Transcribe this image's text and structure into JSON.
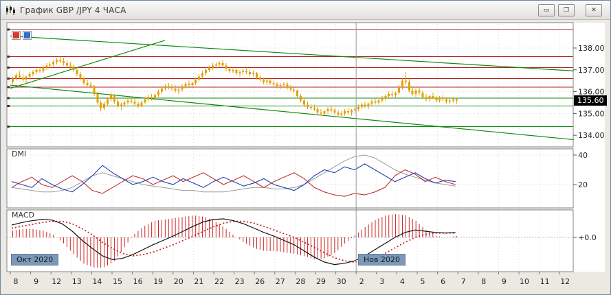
{
  "window": {
    "title": "График GBP /JPY  4 ЧАСА",
    "buttons": {
      "minimize": "▭",
      "restore": "❐",
      "close": "✕"
    }
  },
  "colors": {
    "candle": "#e5a000",
    "red_line": "#b22222",
    "green_line": "#128a12",
    "dmi_plus": "#1f3fae",
    "dmi_minus": "#c43030",
    "dmi_adx": "#999999",
    "macd_line": "#111111",
    "macd_signal": "#cc2222",
    "grid": "#dedede",
    "panel_border": "#848484",
    "month_line": "#9a9a9a",
    "badge_bg": "#000000",
    "badge_text": "#ffffff"
  },
  "chart_data": {
    "type": "candlestick",
    "title": "График GBP /JPY  4 ЧАСА",
    "symbol": "GBP/JPY",
    "timeframe": "4 часа",
    "current_price": "135.60",
    "price_axis": {
      "min": 133.5,
      "max": 139.1,
      "ticks": [
        {
          "label": "138.00",
          "value": 138.0
        },
        {
          "label": "137.00",
          "value": 137.0
        },
        {
          "label": "136.00",
          "value": 136.0
        },
        {
          "label": "135.00",
          "value": 135.0
        },
        {
          "label": "134.00",
          "value": 134.0
        }
      ]
    },
    "x_labels": [
      "8",
      "9",
      "12",
      "13",
      "14",
      "15",
      "16",
      "19",
      "20",
      "21",
      "22",
      "23",
      "26",
      "27",
      "28",
      "29",
      "30",
      "2",
      "3",
      "4",
      "5",
      "6",
      "7",
      "8",
      "9",
      "10",
      "11",
      "12"
    ],
    "month_labels": [
      {
        "text": "Окт 2020",
        "day_index": 0
      },
      {
        "text": "Нов 2020",
        "day_index": 17
      }
    ],
    "levels": {
      "red": [
        138.85,
        137.6,
        137.1,
        136.6,
        136.2
      ],
      "green": [
        135.7,
        135.35,
        134.4
      ]
    },
    "trendlines": [
      {
        "d1": 0,
        "p1": 136.15,
        "d2": 7.6,
        "p2": 138.35
      },
      {
        "d1": 0,
        "p1": 138.55,
        "d2": 27.7,
        "p2": 136.95
      },
      {
        "d1": 0,
        "p1": 136.3,
        "d2": 27.7,
        "p2": 133.8
      }
    ],
    "candles": [
      [
        136.45,
        136.7,
        136.35,
        136.6
      ],
      [
        136.6,
        136.85,
        136.5,
        136.75
      ],
      [
        136.75,
        136.95,
        136.6,
        136.65
      ],
      [
        136.65,
        136.8,
        136.45,
        136.55
      ],
      [
        136.55,
        136.75,
        136.4,
        136.7
      ],
      [
        136.7,
        136.9,
        136.55,
        136.8
      ],
      [
        136.8,
        137.0,
        136.7,
        136.9
      ],
      [
        136.9,
        137.1,
        136.8,
        137.0
      ],
      [
        137.0,
        137.15,
        136.85,
        136.95
      ],
      [
        136.95,
        137.2,
        136.85,
        137.1
      ],
      [
        137.1,
        137.3,
        137.0,
        137.2
      ],
      [
        137.2,
        137.35,
        137.05,
        137.25
      ],
      [
        137.25,
        137.45,
        137.15,
        137.35
      ],
      [
        137.35,
        137.55,
        137.25,
        137.45
      ],
      [
        137.45,
        137.6,
        137.3,
        137.4
      ],
      [
        137.4,
        137.55,
        137.2,
        137.3
      ],
      [
        137.3,
        137.45,
        137.1,
        137.2
      ],
      [
        137.2,
        137.35,
        137.05,
        137.15
      ],
      [
        137.15,
        137.25,
        136.9,
        137.0
      ],
      [
        137.0,
        137.1,
        136.7,
        136.8
      ],
      [
        136.8,
        136.9,
        136.5,
        136.6
      ],
      [
        136.6,
        136.7,
        136.3,
        136.4
      ],
      [
        136.4,
        136.55,
        136.2,
        136.3
      ],
      [
        136.3,
        136.45,
        136.15,
        136.25
      ],
      [
        136.25,
        136.3,
        135.8,
        135.9
      ],
      [
        135.9,
        136.0,
        135.4,
        135.5
      ],
      [
        135.5,
        135.6,
        135.1,
        135.25
      ],
      [
        135.25,
        135.55,
        135.15,
        135.45
      ],
      [
        135.45,
        135.75,
        135.35,
        135.65
      ],
      [
        135.65,
        135.95,
        135.55,
        135.85
      ],
      [
        135.85,
        135.9,
        135.45,
        135.55
      ],
      [
        135.55,
        135.65,
        135.25,
        135.35
      ],
      [
        135.35,
        135.5,
        135.15,
        135.4
      ],
      [
        135.4,
        135.6,
        135.3,
        135.5
      ],
      [
        135.5,
        135.7,
        135.4,
        135.6
      ],
      [
        135.6,
        135.75,
        135.45,
        135.55
      ],
      [
        135.55,
        135.7,
        135.35,
        135.45
      ],
      [
        135.45,
        135.55,
        135.25,
        135.35
      ],
      [
        135.35,
        135.6,
        135.3,
        135.5
      ],
      [
        135.5,
        135.75,
        135.45,
        135.65
      ],
      [
        135.65,
        135.85,
        135.55,
        135.75
      ],
      [
        135.75,
        135.9,
        135.6,
        135.7
      ],
      [
        135.7,
        135.95,
        135.6,
        135.85
      ],
      [
        135.85,
        136.1,
        135.75,
        136.0
      ],
      [
        136.0,
        136.25,
        135.9,
        136.15
      ],
      [
        136.15,
        136.35,
        136.05,
        136.25
      ],
      [
        136.25,
        136.4,
        136.1,
        136.2
      ],
      [
        136.2,
        136.35,
        136.05,
        136.15
      ],
      [
        136.15,
        136.3,
        135.95,
        136.05
      ],
      [
        136.05,
        136.2,
        135.9,
        136.1
      ],
      [
        136.1,
        136.35,
        136.0,
        136.25
      ],
      [
        136.25,
        136.45,
        136.15,
        136.35
      ],
      [
        136.35,
        136.5,
        136.2,
        136.3
      ],
      [
        136.3,
        136.45,
        136.15,
        136.4
      ],
      [
        136.4,
        136.65,
        136.3,
        136.55
      ],
      [
        136.55,
        136.8,
        136.45,
        136.7
      ],
      [
        136.7,
        136.95,
        136.6,
        136.85
      ],
      [
        136.85,
        137.1,
        136.75,
        137.0
      ],
      [
        137.0,
        137.2,
        136.9,
        137.1
      ],
      [
        137.1,
        137.3,
        137.0,
        137.2
      ],
      [
        137.2,
        137.35,
        137.05,
        137.25
      ],
      [
        137.25,
        137.4,
        137.1,
        137.3
      ],
      [
        137.3,
        137.45,
        137.15,
        137.2
      ],
      [
        137.2,
        137.3,
        136.95,
        137.05
      ],
      [
        137.05,
        137.15,
        136.85,
        136.95
      ],
      [
        136.95,
        137.1,
        136.85,
        137.0
      ],
      [
        137.0,
        137.1,
        136.75,
        136.85
      ],
      [
        136.85,
        137.0,
        136.7,
        136.9
      ],
      [
        136.9,
        137.05,
        136.75,
        136.95
      ],
      [
        136.95,
        137.1,
        136.8,
        136.9
      ],
      [
        136.9,
        137.0,
        136.7,
        136.8
      ],
      [
        136.8,
        136.95,
        136.7,
        136.85
      ],
      [
        136.85,
        136.9,
        136.55,
        136.65
      ],
      [
        136.65,
        136.75,
        136.45,
        136.55
      ],
      [
        136.55,
        136.65,
        136.35,
        136.45
      ],
      [
        136.45,
        136.6,
        136.3,
        136.5
      ],
      [
        136.5,
        136.6,
        136.3,
        136.4
      ],
      [
        136.4,
        136.5,
        136.25,
        136.35
      ],
      [
        136.35,
        136.45,
        136.15,
        136.25
      ],
      [
        136.25,
        136.4,
        136.1,
        136.3
      ],
      [
        136.3,
        136.45,
        136.2,
        136.35
      ],
      [
        136.35,
        136.45,
        136.1,
        136.2
      ],
      [
        136.2,
        136.3,
        136.0,
        136.1
      ],
      [
        136.1,
        136.25,
        135.95,
        136.05
      ],
      [
        136.05,
        136.1,
        135.7,
        135.8
      ],
      [
        135.8,
        135.9,
        135.5,
        135.6
      ],
      [
        135.6,
        135.7,
        135.3,
        135.4
      ],
      [
        135.4,
        135.55,
        135.2,
        135.3
      ],
      [
        135.3,
        135.45,
        135.15,
        135.25
      ],
      [
        135.25,
        135.4,
        135.1,
        135.2
      ],
      [
        135.2,
        135.3,
        134.95,
        135.05
      ],
      [
        135.05,
        135.2,
        134.9,
        135.0
      ],
      [
        135.0,
        135.15,
        134.9,
        135.1
      ],
      [
        135.1,
        135.3,
        135.0,
        135.2
      ],
      [
        135.2,
        135.35,
        135.05,
        135.15
      ],
      [
        135.15,
        135.25,
        134.95,
        135.05
      ],
      [
        135.05,
        135.15,
        134.85,
        134.95
      ],
      [
        134.95,
        135.1,
        134.85,
        135.0
      ],
      [
        135.0,
        135.2,
        134.9,
        135.1
      ],
      [
        135.1,
        135.25,
        134.95,
        135.05
      ],
      [
        135.05,
        135.2,
        134.9,
        135.15
      ],
      [
        135.15,
        135.3,
        135.0,
        135.2
      ],
      [
        135.2,
        135.4,
        135.1,
        135.3
      ],
      [
        135.3,
        135.5,
        135.2,
        135.4
      ],
      [
        135.4,
        135.55,
        135.25,
        135.35
      ],
      [
        135.35,
        135.5,
        135.2,
        135.45
      ],
      [
        135.45,
        135.65,
        135.35,
        135.55
      ],
      [
        135.55,
        135.7,
        135.4,
        135.5
      ],
      [
        135.5,
        135.7,
        135.4,
        135.6
      ],
      [
        135.6,
        135.8,
        135.5,
        135.7
      ],
      [
        135.7,
        135.9,
        135.6,
        135.8
      ],
      [
        135.8,
        136.0,
        135.7,
        135.9
      ],
      [
        135.9,
        136.05,
        135.75,
        135.85
      ],
      [
        135.85,
        136.0,
        135.7,
        135.95
      ],
      [
        135.95,
        136.3,
        135.85,
        136.2
      ],
      [
        136.2,
        136.6,
        136.1,
        136.5
      ],
      [
        136.5,
        136.9,
        136.3,
        136.45
      ],
      [
        136.45,
        136.6,
        135.95,
        136.05
      ],
      [
        136.05,
        136.25,
        135.8,
        135.9
      ],
      [
        135.9,
        136.15,
        135.75,
        136.05
      ],
      [
        136.05,
        136.2,
        135.85,
        135.95
      ],
      [
        135.95,
        136.05,
        135.65,
        135.75
      ],
      [
        135.75,
        135.9,
        135.55,
        135.65
      ],
      [
        135.65,
        135.85,
        135.55,
        135.8
      ],
      [
        135.8,
        135.95,
        135.65,
        135.7
      ],
      [
        135.7,
        135.8,
        135.5,
        135.6
      ],
      [
        135.6,
        135.8,
        135.5,
        135.7
      ],
      [
        135.7,
        135.85,
        135.55,
        135.65
      ],
      [
        135.65,
        135.75,
        135.45,
        135.55
      ],
      [
        135.55,
        135.7,
        135.45,
        135.6
      ],
      [
        135.6,
        135.75,
        135.5,
        135.65
      ],
      [
        135.65,
        135.7,
        135.45,
        135.6
      ]
    ],
    "indicators": {
      "dmi": {
        "label": "DMI",
        "ticks": [
          {
            "label": "40",
            "value": 40
          },
          {
            "label": "20",
            "value": 20
          }
        ],
        "plus_di": [
          22,
          20,
          18,
          24,
          20,
          17,
          15,
          20,
          26,
          33,
          28,
          24,
          20,
          22,
          25,
          22,
          20,
          24,
          21,
          18,
          22,
          25,
          22,
          19,
          21,
          24,
          20,
          18,
          16,
          20,
          26,
          30,
          28,
          32,
          30,
          34,
          30,
          26,
          22,
          25,
          28,
          24,
          21,
          23,
          22
        ],
        "minus_di": [
          18,
          22,
          25,
          20,
          18,
          22,
          26,
          22,
          16,
          14,
          18,
          22,
          26,
          24,
          20,
          23,
          26,
          22,
          25,
          28,
          24,
          20,
          23,
          26,
          22,
          18,
          22,
          25,
          28,
          24,
          18,
          15,
          13,
          12,
          14,
          13,
          15,
          18,
          26,
          30,
          27,
          22,
          25,
          22,
          20
        ],
        "adx": [
          18,
          17,
          16,
          15,
          15,
          16,
          18,
          22,
          26,
          28,
          26,
          24,
          22,
          20,
          19,
          18,
          17,
          16,
          16,
          15,
          15,
          15,
          16,
          17,
          18,
          18,
          17,
          17,
          18,
          20,
          24,
          28,
          32,
          36,
          39,
          40,
          38,
          34,
          30,
          27,
          25,
          23,
          21,
          20,
          19
        ]
      },
      "macd": {
        "label": "MACD",
        "ticks": [
          {
            "label": "+0.0",
            "value": 0
          }
        ],
        "macd": [
          0.2,
          0.24,
          0.27,
          0.29,
          0.28,
          0.22,
          0.1,
          -0.05,
          -0.18,
          -0.3,
          -0.36,
          -0.34,
          -0.28,
          -0.2,
          -0.12,
          -0.05,
          0.02,
          0.1,
          0.18,
          0.25,
          0.29,
          0.3,
          0.27,
          0.22,
          0.15,
          0.08,
          0.02,
          -0.05,
          -0.12,
          -0.22,
          -0.32,
          -0.4,
          -0.44,
          -0.42,
          -0.38,
          -0.3,
          -0.2,
          -0.1,
          0.0,
          0.08,
          0.12,
          0.1,
          0.08,
          0.07,
          0.08
        ],
        "signal": [
          0.15,
          0.18,
          0.21,
          0.24,
          0.26,
          0.26,
          0.22,
          0.14,
          0.04,
          -0.08,
          -0.18,
          -0.26,
          -0.3,
          -0.28,
          -0.24,
          -0.18,
          -0.12,
          -0.05,
          0.02,
          0.1,
          0.17,
          0.23,
          0.26,
          0.26,
          0.23,
          0.18,
          0.12,
          0.06,
          0.0,
          -0.08,
          -0.16,
          -0.25,
          -0.33,
          -0.38,
          -0.4,
          -0.38,
          -0.33,
          -0.26,
          -0.17,
          -0.08,
          0.0,
          0.05,
          0.07,
          0.07,
          0.07
        ]
      }
    }
  }
}
